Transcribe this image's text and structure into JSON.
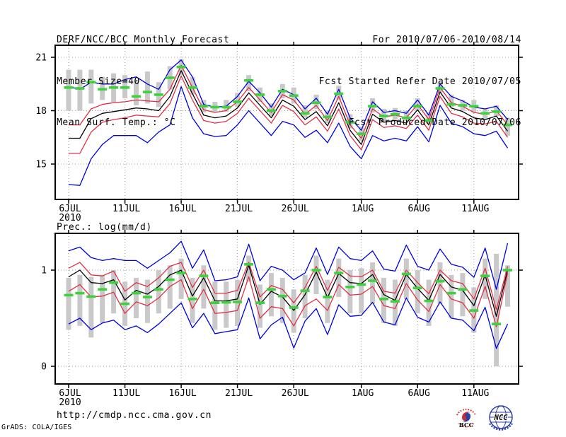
{
  "header": {
    "left": {
      "line1": "DERF/NCC/BCC Monthly Forecast",
      "line2": "Member Size=40"
    },
    "right": {
      "line1": "For 2010/07/06-2010/08/14",
      "line2": "Fcst Started Refer Date 2010/07/05",
      "line3": "Fcst Produced Date 2010/07/06"
    }
  },
  "footer": {
    "url": "http://cmdp.ncc.cma.gov.cn",
    "credit": "GrADS: COLA/IGES",
    "logos": {
      "bcc": "BCC",
      "ncc": "NCC"
    }
  },
  "colors": {
    "grid": "#9a9a9a",
    "frame": "#000000",
    "minmax_line": "#0000dd",
    "spread_line": "#e03048",
    "mean_line": "#000000",
    "obs_dash": "#3cd23c",
    "spread_bar": "#c9c9c9"
  },
  "chart_data": [
    {
      "type": "line",
      "id": "temp",
      "title": "Mean Surf. Temp.: °C",
      "yticks": [
        15,
        18,
        21
      ],
      "ylim": [
        12.9,
        21.7
      ],
      "n_days": 40,
      "start_date": "6JUL 2010",
      "x_ticks": [
        {
          "day": 0,
          "label": "6JUL",
          "sublabel": "2010"
        },
        {
          "day": 5,
          "label": "11JUL"
        },
        {
          "day": 10,
          "label": "16JUL"
        },
        {
          "day": 15,
          "label": "21JUL"
        },
        {
          "day": 20,
          "label": "26JUL"
        },
        {
          "day": 26,
          "label": "1AUG"
        },
        {
          "day": 31,
          "label": "6AUG"
        },
        {
          "day": 36,
          "label": "11AUG"
        }
      ],
      "series": [
        {
          "name": "ensemble-max",
          "color": "#0000dd",
          "values": [
            19.35,
            19.2,
            19.6,
            19.5,
            19.5,
            19.75,
            19.9,
            19.5,
            19.2,
            20.3,
            20.85,
            19.9,
            18.35,
            18.2,
            18.25,
            18.8,
            19.65,
            19.0,
            18.2,
            19.2,
            18.9,
            18.1,
            18.7,
            17.8,
            19.2,
            17.6,
            16.9,
            18.5,
            17.9,
            18.0,
            17.85,
            18.6,
            17.75,
            19.5,
            18.8,
            18.55,
            18.2,
            18.1,
            18.25,
            17.5
          ]
        },
        {
          "name": "spread-upper",
          "color": "#e03048",
          "values": [
            17.2,
            17.2,
            18.1,
            18.35,
            18.45,
            18.5,
            18.6,
            18.55,
            18.5,
            19.2,
            20.55,
            19.3,
            18.05,
            17.9,
            18.0,
            18.5,
            19.3,
            18.6,
            17.9,
            18.9,
            18.6,
            17.8,
            18.3,
            17.45,
            18.8,
            17.2,
            16.45,
            18.1,
            17.65,
            17.75,
            17.6,
            18.35,
            17.5,
            19.3,
            18.45,
            18.25,
            17.9,
            17.8,
            18.0,
            17.2
          ]
        },
        {
          "name": "ensemble-mean",
          "color": "#000000",
          "values": [
            16.45,
            16.45,
            17.55,
            17.85,
            17.95,
            18.05,
            18.15,
            18.1,
            18.0,
            18.8,
            20.25,
            18.95,
            17.75,
            17.6,
            17.7,
            18.15,
            19.0,
            18.3,
            17.6,
            18.6,
            18.25,
            17.5,
            17.95,
            17.15,
            18.45,
            16.9,
            16.1,
            17.8,
            17.35,
            17.45,
            17.3,
            18.05,
            17.2,
            19.05,
            18.15,
            17.95,
            17.6,
            17.5,
            17.7,
            16.85
          ]
        },
        {
          "name": "spread-lower",
          "color": "#e03048",
          "values": [
            15.6,
            15.6,
            16.8,
            17.35,
            17.5,
            17.6,
            17.75,
            17.7,
            17.65,
            18.4,
            19.95,
            18.6,
            17.45,
            17.3,
            17.4,
            17.85,
            18.7,
            18.0,
            17.3,
            18.3,
            17.95,
            17.2,
            17.65,
            16.85,
            18.1,
            16.6,
            15.8,
            17.5,
            17.05,
            17.15,
            17.0,
            17.75,
            16.9,
            18.8,
            17.85,
            17.65,
            17.3,
            17.25,
            17.4,
            16.5
          ]
        },
        {
          "name": "ensemble-min",
          "color": "#0000dd",
          "values": [
            13.85,
            13.8,
            15.3,
            16.1,
            16.6,
            16.6,
            16.6,
            16.2,
            16.8,
            17.2,
            19.35,
            17.6,
            16.7,
            16.55,
            16.6,
            17.2,
            18.0,
            17.3,
            16.6,
            17.4,
            17.2,
            16.5,
            16.9,
            16.2,
            17.3,
            16.0,
            15.3,
            16.6,
            16.3,
            16.45,
            16.3,
            17.1,
            16.25,
            18.3,
            17.3,
            17.1,
            16.7,
            16.6,
            16.85,
            15.9
          ]
        }
      ],
      "obs_dashes": {
        "color": "#3cd23c",
        "values": [
          19.3,
          19.25,
          19.6,
          19.2,
          19.3,
          19.3,
          18.8,
          19.05,
          18.9,
          19.85,
          20.45,
          19.3,
          18.25,
          18.2,
          18.2,
          18.5,
          19.7,
          18.9,
          18.0,
          19.1,
          18.85,
          17.85,
          18.45,
          17.65,
          18.95,
          17.35,
          16.7,
          18.25,
          17.7,
          17.8,
          17.6,
          18.25,
          17.45,
          19.25,
          18.35,
          18.3,
          18.25,
          17.85,
          17.95,
          17.2
        ]
      },
      "spread_bars": {
        "color": "#c9c9c9",
        "lo": [
          18.0,
          18.0,
          18.4,
          18.6,
          18.5,
          18.7,
          18.3,
          18.4,
          18.2,
          19.2,
          20.0,
          18.9,
          17.9,
          17.9,
          17.95,
          18.2,
          19.1,
          18.5,
          17.7,
          18.7,
          18.4,
          17.6,
          18.1,
          17.3,
          18.6,
          17.0,
          16.3,
          17.9,
          17.4,
          17.5,
          17.4,
          18.0,
          17.25,
          19.0,
          18.2,
          18.0,
          17.9,
          17.55,
          17.7,
          16.6
        ],
        "hi": [
          20.3,
          20.3,
          20.3,
          19.9,
          20.1,
          20.0,
          19.7,
          20.2,
          19.6,
          20.5,
          20.9,
          19.9,
          18.6,
          18.5,
          18.6,
          19.0,
          20.0,
          19.3,
          18.4,
          19.5,
          19.3,
          18.3,
          18.9,
          18.0,
          19.4,
          17.8,
          17.1,
          18.7,
          18.1,
          18.15,
          18.0,
          18.7,
          17.9,
          19.6,
          18.9,
          18.6,
          18.6,
          18.1,
          18.3,
          17.6
        ]
      }
    },
    {
      "type": "line",
      "id": "prec",
      "title": "Prec.: log(mm/d)",
      "yticks": [
        0,
        1
      ],
      "ylim": [
        -0.18,
        1.38
      ],
      "n_days": 40,
      "start_date": "6JUL 2010",
      "x_ticks": [
        {
          "day": 0,
          "label": "6JUL",
          "sublabel": "2010"
        },
        {
          "day": 5,
          "label": "11JUL"
        },
        {
          "day": 10,
          "label": "16JUL"
        },
        {
          "day": 15,
          "label": "21JUL"
        },
        {
          "day": 20,
          "label": "26JUL"
        },
        {
          "day": 26,
          "label": "1AUG"
        },
        {
          "day": 31,
          "label": "6AUG"
        },
        {
          "day": 36,
          "label": "11AUG"
        }
      ],
      "series": [
        {
          "name": "ensemble-max",
          "color": "#0000dd",
          "values": [
            1.2,
            1.24,
            1.13,
            1.1,
            1.12,
            1.1,
            1.1,
            1.02,
            1.1,
            1.18,
            1.3,
            1.02,
            1.21,
            0.89,
            0.9,
            0.93,
            1.27,
            0.89,
            1.04,
            1.0,
            0.9,
            0.97,
            1.23,
            0.955,
            1.24,
            1.12,
            1.1,
            1.2,
            1.01,
            0.99,
            1.26,
            1.04,
            1.0,
            1.22,
            1.06,
            1.03,
            0.925,
            1.23,
            0.8,
            1.28
          ]
        },
        {
          "name": "spread-upper",
          "color": "#e03048",
          "values": [
            1.02,
            1.08,
            0.95,
            0.94,
            0.99,
            0.78,
            0.87,
            0.83,
            0.92,
            1.04,
            1.08,
            0.82,
            1.0,
            0.76,
            0.76,
            0.79,
            1.08,
            0.72,
            0.84,
            0.8,
            0.66,
            0.82,
            1.04,
            0.79,
            1.03,
            0.94,
            0.93,
            1.0,
            0.78,
            0.76,
            1.0,
            0.87,
            0.755,
            1.0,
            0.89,
            0.86,
            0.7,
            1.02,
            0.59,
            1.04
          ]
        },
        {
          "name": "ensemble-mean",
          "color": "#000000",
          "values": [
            0.93,
            1.0,
            0.87,
            0.86,
            0.9,
            0.69,
            0.79,
            0.75,
            0.83,
            0.95,
            1.0,
            0.73,
            0.92,
            0.68,
            0.68,
            0.7,
            1.05,
            0.645,
            0.78,
            0.72,
            0.58,
            0.745,
            0.98,
            0.715,
            0.965,
            0.87,
            0.86,
            0.955,
            0.745,
            0.685,
            0.955,
            0.81,
            0.685,
            0.955,
            0.825,
            0.79,
            0.63,
            0.95,
            0.52,
            1.0
          ]
        },
        {
          "name": "spread-lower",
          "color": "#e03048",
          "values": [
            0.78,
            0.85,
            0.72,
            0.73,
            0.77,
            0.55,
            0.67,
            0.63,
            0.71,
            0.83,
            0.9,
            0.6,
            0.8,
            0.55,
            0.56,
            0.58,
            0.93,
            0.5,
            0.62,
            0.6,
            0.42,
            0.63,
            0.7,
            0.58,
            0.85,
            0.74,
            0.75,
            0.83,
            0.63,
            0.6,
            0.86,
            0.69,
            0.57,
            0.85,
            0.7,
            0.66,
            0.5,
            0.83,
            0.41,
            0.97
          ]
        },
        {
          "name": "ensemble-min",
          "color": "#0000dd",
          "values": [
            0.44,
            0.5,
            0.38,
            0.45,
            0.48,
            0.38,
            0.42,
            0.35,
            0.44,
            0.55,
            0.66,
            0.4,
            0.55,
            0.34,
            0.36,
            0.38,
            0.71,
            0.285,
            0.43,
            0.51,
            0.19,
            0.47,
            0.6,
            0.33,
            0.64,
            0.52,
            0.53,
            0.665,
            0.46,
            0.43,
            0.71,
            0.51,
            0.46,
            0.67,
            0.5,
            0.48,
            0.37,
            0.615,
            0.185,
            0.44
          ]
        }
      ],
      "obs_dashes": {
        "color": "#3cd23c",
        "values": [
          0.74,
          0.76,
          0.725,
          0.8,
          0.87,
          0.65,
          0.76,
          0.72,
          0.8,
          0.9,
          0.97,
          0.7,
          0.94,
          0.66,
          0.665,
          0.67,
          1.06,
          0.66,
          0.8,
          0.73,
          0.61,
          0.785,
          1.0,
          0.72,
          0.97,
          0.825,
          0.85,
          0.89,
          0.7,
          0.675,
          0.96,
          0.815,
          0.68,
          0.885,
          0.76,
          0.8,
          0.58,
          0.94,
          0.44,
          1.0
        ]
      },
      "spread_bars": {
        "color": "#c9c9c9",
        "lo": [
          0.38,
          0.42,
          0.3,
          0.45,
          0.55,
          0.42,
          0.5,
          0.45,
          0.55,
          0.6,
          0.7,
          0.45,
          0.6,
          0.38,
          0.4,
          0.42,
          0.88,
          0.4,
          0.52,
          0.45,
          0.35,
          0.5,
          0.75,
          0.45,
          0.72,
          0.55,
          0.55,
          0.65,
          0.45,
          0.42,
          0.7,
          0.55,
          0.42,
          0.65,
          0.5,
          0.52,
          0.35,
          0.7,
          0.0,
          0.62
        ],
        "hi": [
          0.92,
          0.95,
          0.93,
          0.95,
          1.0,
          0.88,
          0.92,
          0.9,
          1.0,
          1.05,
          1.12,
          0.92,
          1.05,
          0.88,
          0.88,
          0.9,
          1.15,
          0.85,
          0.97,
          0.92,
          0.8,
          0.95,
          1.15,
          0.9,
          1.12,
          1.0,
          1.02,
          1.08,
          0.92,
          0.9,
          1.12,
          1.0,
          0.9,
          1.08,
          0.95,
          0.97,
          0.82,
          1.12,
          1.17,
          1.05
        ]
      }
    }
  ]
}
